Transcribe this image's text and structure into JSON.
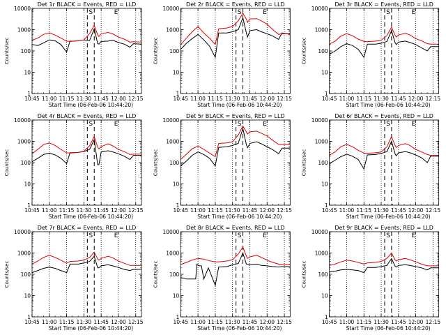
{
  "colors": {
    "events": "#000000",
    "lld": "#e00000",
    "background": "#ffffff",
    "axes": "#000000"
  },
  "shared": {
    "xlabel": "Start Time (06-Feb-06 10:44:20)",
    "ylabel": "Counts/sec",
    "xticks": [
      "10:45",
      "11:00",
      "11:15",
      "11:30",
      "11:45",
      "12:00",
      "12:15"
    ],
    "yticks": [
      "1",
      "10",
      "100",
      "1000",
      "10000"
    ],
    "marker_s": "S",
    "marker_e": "E"
  },
  "chart_data": [
    {
      "type": "line",
      "title": "Det 1r BLACK = Events, RED = LLD",
      "xlim_min": [
        0,
        95
      ],
      "ylim": [
        1,
        10000
      ],
      "scale": "log",
      "grid": "vertical dotted every 15 min",
      "series": [
        {
          "name": "Events",
          "color": "#000000",
          "x": [
            0,
            5,
            10,
            15,
            20,
            25,
            30,
            33,
            37,
            45,
            50,
            54,
            57,
            58,
            60,
            66,
            70,
            75,
            80,
            85,
            88,
            95
          ],
          "y": [
            200,
            180,
            240,
            330,
            300,
            200,
            90,
            290,
            290,
            330,
            310,
            1100,
            220,
            210,
            280,
            290,
            320,
            250,
            210,
            150,
            220,
            210
          ]
        },
        {
          "name": "LLD",
          "color": "#e00000",
          "x": [
            0,
            5,
            10,
            15,
            20,
            25,
            30,
            33,
            40,
            45,
            50,
            54,
            57,
            58,
            60,
            66,
            70,
            75,
            80,
            85,
            88,
            95
          ],
          "y": [
            320,
            400,
            600,
            700,
            560,
            400,
            290,
            280,
            300,
            330,
            650,
            1600,
            560,
            480,
            640,
            740,
            640,
            450,
            360,
            260,
            270,
            260
          ]
        }
      ]
    },
    {
      "type": "line",
      "title": "Det 2r BLACK = Events, RED = LLD",
      "xlim_min": [
        0,
        95
      ],
      "ylim": [
        1,
        10000
      ],
      "scale": "log",
      "grid": "vertical dotted every 15 min",
      "series": [
        {
          "name": "Events",
          "color": "#000000",
          "x": [
            0,
            5,
            10,
            15,
            20,
            25,
            30,
            33,
            40,
            45,
            50,
            54,
            57,
            58,
            60,
            66,
            70,
            75,
            80,
            85,
            88,
            95
          ],
          "y": [
            120,
            230,
            380,
            600,
            330,
            170,
            50,
            700,
            700,
            800,
            1000,
            3600,
            700,
            450,
            900,
            1000,
            800,
            640,
            500,
            350,
            700,
            600
          ]
        },
        {
          "name": "LLD",
          "color": "#e00000",
          "x": [
            0,
            5,
            10,
            15,
            20,
            25,
            30,
            33,
            40,
            45,
            50,
            54,
            57,
            58,
            60,
            66,
            70,
            75,
            80,
            85,
            88,
            95
          ],
          "y": [
            200,
            400,
            800,
            1400,
            700,
            400,
            200,
            1100,
            1200,
            1400,
            2600,
            6000,
            3100,
            2200,
            3200,
            3300,
            2600,
            1800,
            1000,
            600,
            650,
            650
          ]
        }
      ]
    },
    {
      "type": "line",
      "title": "Det 3r BLACK = Events, RED = LLD",
      "xlim_min": [
        0,
        95
      ],
      "ylim": [
        1,
        10000
      ],
      "scale": "log",
      "grid": "vertical dotted every 15 min",
      "series": [
        {
          "name": "Events",
          "color": "#000000",
          "x": [
            0,
            5,
            10,
            15,
            20,
            25,
            30,
            33,
            40,
            45,
            50,
            54,
            57,
            58,
            60,
            66,
            70,
            75,
            80,
            85,
            88,
            95
          ],
          "y": [
            70,
            100,
            160,
            220,
            180,
            120,
            50,
            210,
            210,
            230,
            280,
            900,
            250,
            200,
            260,
            290,
            250,
            200,
            140,
            100,
            160,
            160
          ]
        },
        {
          "name": "LLD",
          "color": "#e00000",
          "x": [
            0,
            5,
            10,
            15,
            20,
            25,
            30,
            33,
            40,
            45,
            50,
            54,
            57,
            58,
            60,
            66,
            70,
            75,
            80,
            85,
            88,
            95
          ],
          "y": [
            210,
            290,
            500,
            650,
            520,
            360,
            280,
            270,
            290,
            320,
            540,
            1300,
            560,
            450,
            560,
            680,
            560,
            380,
            300,
            220,
            210,
            210
          ]
        }
      ]
    },
    {
      "type": "line",
      "title": "Det 4r BLACK = Events, RED = LLD",
      "xlim_min": [
        0,
        95
      ],
      "ylim": [
        1,
        10000
      ],
      "scale": "log",
      "grid": "vertical dotted every 15 min",
      "series": [
        {
          "name": "Events",
          "color": "#000000",
          "x": [
            0,
            5,
            10,
            15,
            20,
            25,
            30,
            33,
            40,
            45,
            50,
            54,
            57,
            58,
            60,
            66,
            70,
            75,
            80,
            85,
            88,
            95
          ],
          "y": [
            110,
            160,
            240,
            280,
            230,
            160,
            90,
            290,
            300,
            330,
            420,
            1200,
            80,
            80,
            320,
            360,
            320,
            260,
            200,
            140,
            220,
            220
          ]
        },
        {
          "name": "LLD",
          "color": "#e00000",
          "x": [
            0,
            5,
            10,
            15,
            20,
            25,
            30,
            33,
            40,
            45,
            50,
            54,
            57,
            58,
            60,
            66,
            70,
            75,
            80,
            85,
            88,
            95
          ],
          "y": [
            260,
            420,
            700,
            850,
            640,
            420,
            290,
            280,
            300,
            340,
            620,
            1700,
            520,
            440,
            560,
            760,
            620,
            420,
            330,
            240,
            250,
            250
          ]
        }
      ]
    },
    {
      "type": "line",
      "title": "Det 5r BLACK = Events, RED = LLD",
      "xlim_min": [
        0,
        95
      ],
      "ylim": [
        1,
        10000
      ],
      "scale": "log",
      "grid": "vertical dotted every 15 min",
      "series": [
        {
          "name": "Events",
          "color": "#000000",
          "x": [
            0,
            5,
            10,
            15,
            20,
            25,
            30,
            33,
            40,
            45,
            50,
            54,
            57,
            58,
            60,
            66,
            70,
            75,
            80,
            85,
            88,
            95
          ],
          "y": [
            70,
            120,
            220,
            320,
            240,
            160,
            70,
            520,
            560,
            640,
            800,
            4000,
            700,
            500,
            800,
            950,
            760,
            560,
            400,
            260,
            480,
            480
          ]
        },
        {
          "name": "LLD",
          "color": "#e00000",
          "x": [
            0,
            5,
            10,
            15,
            20,
            25,
            30,
            33,
            40,
            45,
            50,
            54,
            57,
            58,
            60,
            66,
            70,
            75,
            80,
            85,
            88,
            95
          ],
          "y": [
            140,
            250,
            450,
            600,
            420,
            280,
            190,
            800,
            850,
            950,
            2000,
            5200,
            2800,
            2200,
            2800,
            3000,
            2400,
            1800,
            1100,
            720,
            700,
            700
          ]
        }
      ]
    },
    {
      "type": "line",
      "title": "Det 6r BLACK = Events, RED = LLD",
      "xlim_min": [
        0,
        95
      ],
      "ylim": [
        1,
        10000
      ],
      "scale": "log",
      "grid": "vertical dotted every 15 min",
      "series": [
        {
          "name": "Events",
          "color": "#000000",
          "x": [
            0,
            5,
            10,
            15,
            20,
            25,
            30,
            33,
            40,
            45,
            50,
            54,
            57,
            58,
            60,
            66,
            70,
            75,
            80,
            85,
            88,
            95
          ],
          "y": [
            90,
            130,
            190,
            250,
            200,
            140,
            50,
            230,
            240,
            270,
            330,
            1000,
            260,
            210,
            290,
            330,
            290,
            230,
            170,
            100,
            200,
            200
          ]
        },
        {
          "name": "LLD",
          "color": "#e00000",
          "x": [
            0,
            5,
            10,
            15,
            20,
            25,
            30,
            33,
            40,
            45,
            50,
            54,
            57,
            58,
            60,
            66,
            70,
            75,
            80,
            85,
            88,
            95
          ],
          "y": [
            220,
            320,
            560,
            720,
            560,
            380,
            280,
            270,
            290,
            320,
            560,
            1700,
            640,
            520,
            640,
            780,
            640,
            420,
            320,
            240,
            220,
            220
          ]
        }
      ]
    },
    {
      "type": "line",
      "title": "Det 7r BLACK = Events, RED = LLD",
      "xlim_min": [
        0,
        95
      ],
      "ylim": [
        1,
        10000
      ],
      "scale": "log",
      "grid": "vertical dotted every 15 min",
      "series": [
        {
          "name": "Events",
          "color": "#000000",
          "x": [
            0,
            5,
            10,
            15,
            20,
            25,
            30,
            33,
            40,
            45,
            50,
            54,
            57,
            58,
            60,
            66,
            70,
            75,
            80,
            85,
            88,
            95
          ],
          "y": [
            120,
            150,
            190,
            220,
            190,
            150,
            120,
            300,
            300,
            340,
            400,
            700,
            200,
            200,
            250,
            280,
            250,
            210,
            170,
            150,
            170,
            170
          ]
        },
        {
          "name": "LLD",
          "color": "#e00000",
          "x": [
            0,
            5,
            10,
            15,
            20,
            25,
            30,
            33,
            40,
            45,
            50,
            54,
            57,
            58,
            60,
            66,
            70,
            75,
            80,
            85,
            88,
            95
          ],
          "y": [
            300,
            420,
            620,
            780,
            620,
            460,
            330,
            400,
            420,
            460,
            620,
            1100,
            520,
            460,
            560,
            700,
            600,
            420,
            330,
            260,
            260,
            260
          ]
        }
      ]
    },
    {
      "type": "line",
      "title": "Det 8r BLACK = Events, RED = LLD",
      "xlim_min": [
        0,
        95
      ],
      "ylim": [
        1,
        10000
      ],
      "scale": "log",
      "grid": "vertical dotted every 15 min",
      "series": [
        {
          "name": "Events",
          "color": "#000000",
          "x": [
            0,
            5,
            10,
            13,
            14,
            16,
            18,
            20,
            24,
            30,
            33,
            40,
            45,
            50,
            54,
            57,
            58,
            60,
            66,
            70,
            75,
            80,
            85,
            88,
            95
          ],
          "y": [
            70,
            60,
            60,
            60,
            300,
            250,
            250,
            60,
            200,
            30,
            220,
            230,
            280,
            320,
            1000,
            300,
            300,
            280,
            300,
            260,
            250,
            230,
            220,
            230,
            230
          ]
        },
        {
          "name": "LLD",
          "color": "#e00000",
          "x": [
            0,
            5,
            10,
            15,
            20,
            25,
            30,
            33,
            40,
            45,
            50,
            54,
            57,
            58,
            60,
            66,
            70,
            75,
            80,
            85,
            88,
            95
          ],
          "y": [
            290,
            360,
            470,
            560,
            520,
            430,
            380,
            380,
            420,
            480,
            900,
            1900,
            700,
            560,
            660,
            780,
            620,
            460,
            360,
            300,
            290,
            290
          ]
        }
      ]
    },
    {
      "type": "line",
      "title": "Det 9r BLACK = Events, RED = LLD",
      "xlim_min": [
        0,
        95
      ],
      "ylim": [
        1,
        10000
      ],
      "scale": "log",
      "grid": "vertical dotted every 15 min",
      "series": [
        {
          "name": "Events",
          "color": "#000000",
          "x": [
            0,
            5,
            10,
            15,
            20,
            25,
            30,
            33,
            40,
            45,
            50,
            54,
            57,
            58,
            60,
            66,
            70,
            75,
            80,
            85,
            88,
            95
          ],
          "y": [
            130,
            140,
            160,
            170,
            160,
            150,
            120,
            210,
            210,
            230,
            260,
            550,
            240,
            220,
            260,
            280,
            260,
            230,
            200,
            160,
            200,
            200
          ]
        },
        {
          "name": "LLD",
          "color": "#e00000",
          "x": [
            0,
            5,
            10,
            15,
            20,
            25,
            30,
            33,
            40,
            45,
            50,
            54,
            57,
            58,
            60,
            66,
            70,
            75,
            80,
            85,
            88,
            95
          ],
          "y": [
            260,
            300,
            380,
            460,
            420,
            360,
            300,
            340,
            360,
            400,
            560,
            1000,
            480,
            420,
            480,
            560,
            480,
            380,
            300,
            250,
            250,
            250
          ]
        }
      ]
    }
  ]
}
